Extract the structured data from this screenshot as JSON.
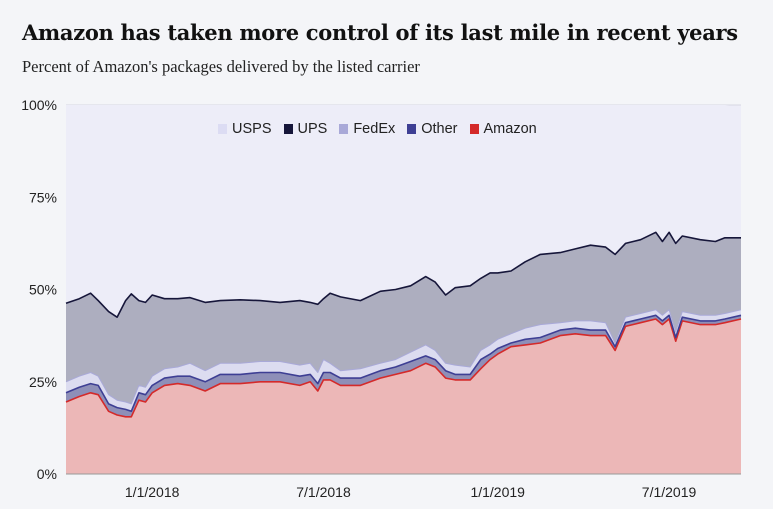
{
  "chart_data": {
    "type": "area",
    "stacked": true,
    "title": "Amazon has taken more control of its last mile in recent years",
    "subtitle": "Percent of Amazon's packages delivered by the listed carrier",
    "xlabel": "",
    "ylabel": "",
    "ylim": [
      0,
      100
    ],
    "xlim": [
      "2017-10-02",
      "2019-09-15"
    ],
    "yticks": [
      "0%",
      "25%",
      "50%",
      "75%",
      "100%"
    ],
    "ytick_values": [
      0,
      25,
      50,
      75,
      100
    ],
    "xticks": [
      "1/1/2018",
      "7/1/2018",
      "1/1/2019",
      "7/1/2019"
    ],
    "xtick_dates": [
      "2018-01-01",
      "2018-07-01",
      "2019-01-01",
      "2019-07-01"
    ],
    "grid": true,
    "legend_position": "top-center",
    "x": [
      "2017-10-02",
      "2017-10-16",
      "2017-10-28",
      "2017-11-05",
      "2017-11-16",
      "2017-11-25",
      "2017-12-04",
      "2017-12-10",
      "2017-12-18",
      "2017-12-25",
      "2018-01-01",
      "2018-01-14",
      "2018-01-28",
      "2018-02-10",
      "2018-02-26",
      "2018-03-14",
      "2018-04-04",
      "2018-04-25",
      "2018-05-16",
      "2018-06-06",
      "2018-06-17",
      "2018-06-25",
      "2018-07-01",
      "2018-07-08",
      "2018-07-19",
      "2018-08-09",
      "2018-08-30",
      "2018-09-15",
      "2018-10-01",
      "2018-10-17",
      "2018-10-27",
      "2018-11-07",
      "2018-11-17",
      "2018-12-03",
      "2018-12-14",
      "2018-12-24",
      "2019-01-01",
      "2019-01-15",
      "2019-01-30",
      "2019-02-15",
      "2019-03-08",
      "2019-03-24",
      "2019-04-09",
      "2019-04-25",
      "2019-05-05",
      "2019-05-16",
      "2019-06-01",
      "2019-06-17",
      "2019-06-24",
      "2019-07-01",
      "2019-07-08",
      "2019-07-15",
      "2019-08-03",
      "2019-08-19",
      "2019-08-29",
      "2019-09-15"
    ],
    "series": [
      {
        "name": "Amazon",
        "fill": "#ecb7b7",
        "line": "#d42a2a",
        "values": [
          19.5,
          21,
          22,
          21.5,
          17,
          16,
          15.5,
          15.5,
          20,
          19.5,
          22,
          24,
          24.5,
          24,
          22.5,
          24.5,
          24.5,
          25,
          25,
          24,
          25,
          22.5,
          25.5,
          25.5,
          24,
          24,
          26,
          27,
          28,
          30,
          29,
          26,
          25.5,
          25.5,
          28.5,
          31,
          32.5,
          34.5,
          35,
          35.5,
          37.5,
          38,
          37.5,
          37.5,
          33.5,
          40,
          41,
          42,
          40.5,
          42,
          36,
          41.5,
          40.5,
          40.5,
          41,
          42
        ]
      },
      {
        "name": "Other",
        "fill": "#8e8fb8",
        "line": "#3e3f94",
        "values": [
          2.5,
          2.5,
          2.5,
          2.5,
          2,
          2,
          2,
          1.5,
          2,
          2,
          2,
          2,
          2,
          2.5,
          2.5,
          2.5,
          2.5,
          2.5,
          2.5,
          2.5,
          2,
          2,
          2,
          2,
          2,
          2,
          2,
          2,
          2.5,
          2,
          2,
          2,
          1.5,
          1.5,
          2.5,
          1.5,
          1.5,
          1,
          1.5,
          1.5,
          1.5,
          1.5,
          1.5,
          1.5,
          1,
          1,
          1,
          1,
          1,
          1,
          1,
          1,
          1,
          1,
          1,
          1
        ]
      },
      {
        "name": "FedEx",
        "fill": "#dcdcf0",
        "line": "#a9a9d8",
        "values": [
          3,
          3,
          3,
          2.5,
          2.5,
          2,
          2,
          2,
          2,
          2,
          2.5,
          2.5,
          2.5,
          3.5,
          3,
          3,
          3,
          3,
          3,
          3,
          3,
          3,
          3.5,
          2.5,
          2,
          2.5,
          2,
          2,
          2.5,
          3,
          2.5,
          2,
          2.5,
          2,
          2.5,
          2.5,
          2.5,
          2.5,
          3,
          3.5,
          2,
          2,
          2.5,
          2,
          1,
          1.5,
          1.5,
          1.5,
          1.5,
          1.5,
          1.5,
          1.5,
          1.5,
          1.5,
          1.5,
          1.5
        ]
      },
      {
        "name": "UPS",
        "fill": "#adaebf",
        "line": "#16163a",
        "values": [
          21.3,
          21,
          21.5,
          20.5,
          22.5,
          22.5,
          27.5,
          29.8,
          23,
          23,
          22,
          19,
          18.5,
          17.8,
          18.5,
          17,
          17.2,
          16.5,
          16,
          17.5,
          16.5,
          18.5,
          16.5,
          19,
          20,
          18.5,
          19.5,
          19,
          18,
          18.5,
          18.5,
          18.5,
          21,
          22,
          19.5,
          19.5,
          18,
          17,
          18,
          19,
          19,
          19.5,
          20.5,
          20.5,
          24,
          20,
          20,
          21,
          20,
          21,
          24,
          20.5,
          20.5,
          20,
          20.5,
          19.5
        ]
      },
      {
        "name": "USPS",
        "fill": "#ededf8",
        "line": "#dedef3",
        "values": [
          53.7,
          52.5,
          51,
          53,
          56,
          57.5,
          53,
          51.2,
          53,
          53.5,
          51.5,
          52.5,
          52.5,
          52.2,
          53.5,
          53,
          52.8,
          53,
          53.5,
          53,
          53.5,
          54,
          52.5,
          51,
          52,
          53,
          50.5,
          50,
          49,
          46.5,
          48,
          51.5,
          49.5,
          49,
          47,
          45.5,
          45.5,
          45,
          42.5,
          40.5,
          40,
          39,
          38,
          38.5,
          40.5,
          37.5,
          36.5,
          34.5,
          37,
          34.5,
          37.5,
          35.5,
          36.5,
          37,
          36,
          35.5
        ]
      }
    ],
    "legend": [
      {
        "name": "USPS",
        "color": "#dcdcf3"
      },
      {
        "name": "UPS",
        "color": "#16163a"
      },
      {
        "name": "FedEx",
        "color": "#a9a9d8"
      },
      {
        "name": "Other",
        "color": "#3e3f94"
      },
      {
        "name": "Amazon",
        "color": "#d42a2a"
      }
    ]
  }
}
